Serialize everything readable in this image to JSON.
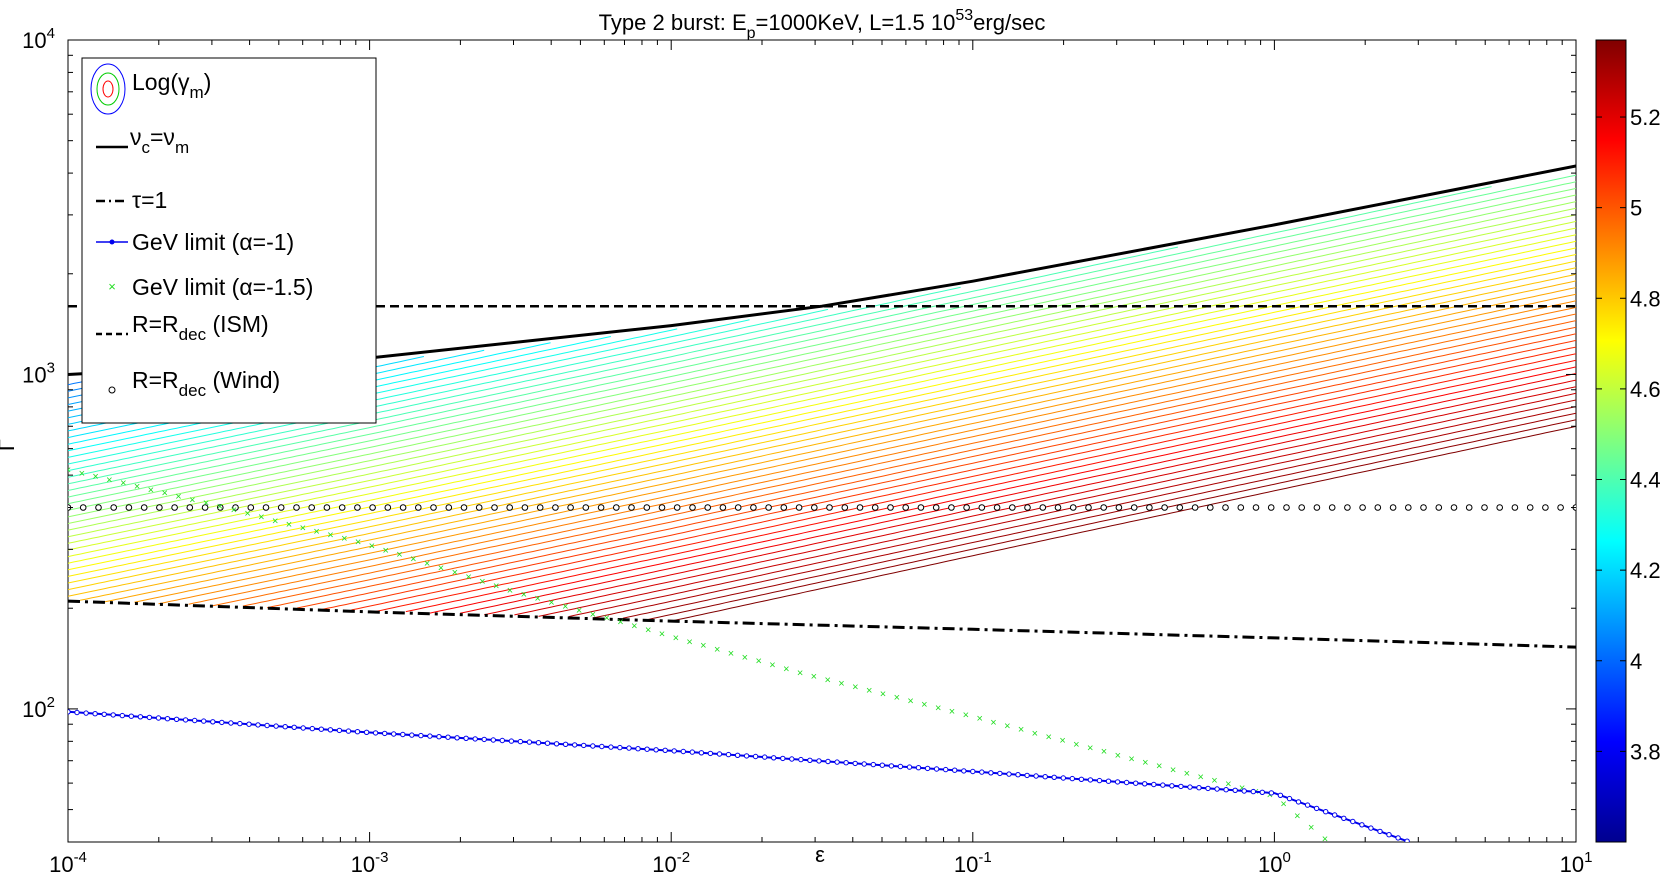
{
  "chart_data": {
    "type": "line",
    "title": {
      "prefix": "Type 2 burst: E",
      "sub": "p",
      "mid": "=1000KeV, L=1.5 10",
      "sup": "53",
      "suffix": "erg/sec"
    },
    "xlabel": "ε",
    "ylabel": "Γ",
    "x_scale": "log",
    "y_scale": "log",
    "xlim": [
      0.0001,
      10
    ],
    "ylim": [
      40,
      10000
    ],
    "x_ticks": [
      {
        "value": 0.0001,
        "base": "10",
        "exp": "-4"
      },
      {
        "value": 0.001,
        "base": "10",
        "exp": "-3"
      },
      {
        "value": 0.01,
        "base": "10",
        "exp": "-2"
      },
      {
        "value": 0.1,
        "base": "10",
        "exp": "-1"
      },
      {
        "value": 1,
        "base": "10",
        "exp": "0"
      },
      {
        "value": 10,
        "base": "10",
        "exp": "1"
      }
    ],
    "y_ticks": [
      {
        "value": 100,
        "base": "10",
        "exp": "2"
      },
      {
        "value": 1000,
        "base": "10",
        "exp": "3"
      },
      {
        "value": 10000,
        "base": "10",
        "exp": "4"
      }
    ],
    "grid": false,
    "legend_position": "top-left",
    "legend": [
      {
        "style": "contour",
        "text": "Log(γ",
        "sub": "m",
        "tail": ")"
      },
      {
        "style": "solid",
        "text": "ν",
        "sub": "c",
        "mid": "=ν",
        "sub2": "m"
      },
      {
        "style": "dashdot",
        "text": "τ=1"
      },
      {
        "style": "blue-dot-line",
        "text": "GeV limit (α=-1)"
      },
      {
        "style": "green-x",
        "text": "GeV limit (α=-1.5)"
      },
      {
        "style": "dashed",
        "text": "R=R",
        "sub": "dec",
        "tail": " (ISM)"
      },
      {
        "style": "open-circle",
        "text": "R=R",
        "sub": "dec",
        "tail": " (Wind)"
      }
    ],
    "series": [
      {
        "name": "ν_c=ν_m",
        "color": "#000000",
        "x": [
          0.0001,
          0.001,
          0.01,
          0.0316,
          0.1,
          1,
          10
        ],
        "y": [
          1000,
          1120,
          1400,
          1600,
          1900,
          2800,
          4200
        ]
      },
      {
        "name": "τ=1",
        "color": "#000000",
        "x": [
          0.0001,
          0.001,
          0.01,
          0.1,
          1,
          10
        ],
        "y": [
          210,
          195,
          183,
          173,
          163,
          153
        ]
      },
      {
        "name": "GeV limit (α=-1)",
        "color": "#0000ee",
        "x": [
          0.0001,
          0.001,
          0.01,
          0.1,
          1,
          2.8
        ],
        "y": [
          98,
          85,
          75,
          65,
          56,
          40
        ]
      },
      {
        "name": "GeV limit (α=-1.5)",
        "color": "#22dd22",
        "x": [
          0.0001,
          0.0003,
          0.001,
          0.003,
          0.01,
          0.03,
          0.1,
          0.3,
          1,
          2.8
        ],
        "y": [
          520,
          410,
          310,
          225,
          165,
          125,
          95,
          73,
          55,
          25
        ]
      },
      {
        "name": "R=R_dec (ISM)",
        "color": "#000000",
        "x": [
          0.0001,
          10
        ],
        "y": [
          1600,
          1600
        ]
      },
      {
        "name": "R=R_dec (Wind)",
        "color": "#000000",
        "x": [
          0.0001,
          10
        ],
        "y": [
          400,
          400
        ]
      }
    ],
    "colorbar": {
      "range": [
        3.6,
        5.37
      ],
      "ticks": [
        "3.8",
        "4",
        "4.2",
        "4.4",
        "4.6",
        "4.8",
        "5",
        "5.2"
      ],
      "tick_values": [
        3.8,
        4.0,
        4.2,
        4.4,
        4.6,
        4.8,
        5.0,
        5.2
      ]
    }
  }
}
